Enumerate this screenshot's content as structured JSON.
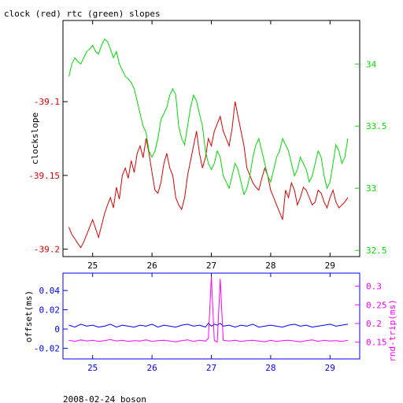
{
  "title": "clock (red) rtc (green) slopes",
  "footer": "2008-02-24 boson",
  "colors": {
    "clock": "#dd0000",
    "rtc": "#00dd00",
    "offset": "#0000ff",
    "rndtrip": "#ff00ff",
    "upper_axis": "#000000",
    "lower_axis": "#0000ff"
  },
  "chart_data": [
    {
      "type": "line",
      "title": "clock (red) rtc (green) slopes",
      "xlabel": "",
      "xlim": [
        24.5,
        29.5
      ],
      "x_ticks": [
        25,
        26,
        27,
        28,
        29
      ],
      "ylabel": "clockslope",
      "ylim": [
        -39.205,
        -39.045
      ],
      "y_ticks": [
        -39.1,
        -39.15,
        -39.2
      ],
      "y2label": "",
      "y2lim": [
        32.45,
        34.35
      ],
      "y2_ticks": [
        34,
        33.5,
        33,
        32.5
      ],
      "grid": false,
      "series": [
        {
          "key": "clock",
          "axis": "left",
          "x": [
            24.6,
            24.65,
            24.7,
            24.75,
            24.8,
            24.85,
            24.9,
            24.95,
            25.0,
            25.05,
            25.1,
            25.15,
            25.2,
            25.25,
            25.3,
            25.35,
            25.4,
            25.45,
            25.5,
            25.55,
            25.6,
            25.65,
            25.7,
            25.75,
            25.8,
            25.85,
            25.9,
            25.95,
            26.0,
            26.05,
            26.1,
            26.15,
            26.2,
            26.25,
            26.3,
            26.35,
            26.4,
            26.45,
            26.5,
            26.55,
            26.6,
            26.65,
            26.7,
            26.75,
            26.8,
            26.85,
            26.9,
            26.95,
            27.0,
            27.05,
            27.1,
            27.15,
            27.2,
            27.25,
            27.3,
            27.35,
            27.4,
            27.45,
            27.5,
            27.55,
            27.6,
            27.65,
            27.7,
            27.75,
            27.8,
            27.85,
            27.9,
            27.95,
            28.0,
            28.05,
            28.1,
            28.15,
            28.2,
            28.25,
            28.3,
            28.35,
            28.4,
            28.45,
            28.5,
            28.55,
            28.6,
            28.65,
            28.7,
            28.75,
            28.8,
            28.85,
            28.9,
            28.95,
            29.0,
            29.05,
            29.1,
            29.15,
            29.2,
            29.25,
            29.3
          ],
          "y": [
            -39.185,
            -39.19,
            -39.193,
            -39.196,
            -39.199,
            -39.195,
            -39.19,
            -39.185,
            -39.18,
            -39.186,
            -39.192,
            -39.184,
            -39.176,
            -39.17,
            -39.165,
            -39.172,
            -39.158,
            -39.166,
            -39.15,
            -39.145,
            -39.152,
            -39.14,
            -39.148,
            -39.135,
            -39.13,
            -39.138,
            -39.125,
            -39.135,
            -39.148,
            -39.16,
            -39.162,
            -39.155,
            -39.142,
            -39.135,
            -39.145,
            -39.15,
            -39.165,
            -39.17,
            -39.173,
            -39.165,
            -39.15,
            -39.14,
            -39.13,
            -39.12,
            -39.135,
            -39.145,
            -39.138,
            -39.125,
            -39.13,
            -39.12,
            -39.115,
            -39.11,
            -39.12,
            -39.125,
            -39.13,
            -39.118,
            -39.1,
            -39.11,
            -39.12,
            -39.13,
            -39.145,
            -39.15,
            -39.155,
            -39.158,
            -39.16,
            -39.152,
            -39.145,
            -39.15,
            -39.16,
            -39.165,
            -39.17,
            -39.175,
            -39.18,
            -39.16,
            -39.165,
            -39.155,
            -39.16,
            -39.17,
            -39.165,
            -39.158,
            -39.16,
            -39.165,
            -39.17,
            -39.168,
            -39.16,
            -39.162,
            -39.168,
            -39.172,
            -39.165,
            -39.16,
            -39.168,
            -39.172,
            -39.17,
            -39.168,
            -39.165
          ]
        },
        {
          "key": "rtc",
          "axis": "right",
          "x": [
            24.6,
            24.65,
            24.7,
            24.75,
            24.8,
            24.85,
            24.9,
            24.95,
            25.0,
            25.05,
            25.1,
            25.15,
            25.2,
            25.25,
            25.3,
            25.35,
            25.4,
            25.45,
            25.5,
            25.55,
            25.6,
            25.65,
            25.7,
            25.75,
            25.8,
            25.85,
            25.9,
            25.95,
            26.0,
            26.05,
            26.1,
            26.15,
            26.2,
            26.25,
            26.3,
            26.35,
            26.4,
            26.45,
            26.5,
            26.55,
            26.6,
            26.65,
            26.7,
            26.75,
            26.8,
            26.85,
            26.9,
            26.95,
            27.0,
            27.05,
            27.1,
            27.15,
            27.2,
            27.25,
            27.3,
            27.35,
            27.4,
            27.45,
            27.5,
            27.55,
            27.6,
            27.65,
            27.7,
            27.75,
            27.8,
            27.85,
            27.9,
            27.95,
            28.0,
            28.05,
            28.1,
            28.15,
            28.2,
            28.25,
            28.3,
            28.35,
            28.4,
            28.45,
            28.5,
            28.55,
            28.6,
            28.65,
            28.7,
            28.75,
            28.8,
            28.85,
            28.9,
            28.95,
            29.0,
            29.05,
            29.1,
            29.15,
            29.2,
            29.25,
            29.3
          ],
          "y": [
            33.9,
            34.0,
            34.05,
            34.02,
            34.0,
            34.05,
            34.1,
            34.12,
            34.15,
            34.1,
            34.08,
            34.15,
            34.2,
            34.18,
            34.12,
            34.05,
            34.1,
            34.0,
            33.95,
            33.9,
            33.88,
            33.85,
            33.8,
            33.7,
            33.6,
            33.5,
            33.45,
            33.3,
            33.25,
            33.3,
            33.4,
            33.55,
            33.6,
            33.65,
            33.75,
            33.8,
            33.75,
            33.5,
            33.4,
            33.35,
            33.5,
            33.65,
            33.75,
            33.7,
            33.6,
            33.5,
            33.3,
            33.2,
            33.15,
            33.2,
            33.3,
            33.25,
            33.1,
            33.05,
            33.0,
            33.1,
            33.2,
            33.15,
            33.05,
            32.95,
            33.0,
            33.1,
            33.25,
            33.35,
            33.4,
            33.3,
            33.2,
            33.1,
            33.05,
            33.15,
            33.25,
            33.3,
            33.4,
            33.35,
            33.3,
            33.2,
            33.1,
            33.15,
            33.25,
            33.2,
            33.15,
            33.05,
            33.1,
            33.2,
            33.3,
            33.25,
            33.1,
            33.0,
            33.05,
            33.2,
            33.35,
            33.3,
            33.2,
            33.25,
            33.4
          ]
        }
      ]
    },
    {
      "type": "line",
      "title": "",
      "xlabel": "",
      "xlim": [
        24.5,
        29.5
      ],
      "x_ticks": [
        25,
        26,
        27,
        28,
        29
      ],
      "ylabel": "offset(ms)",
      "ylim": [
        -0.031,
        0.058
      ],
      "y_ticks": [
        0.04,
        0.02,
        0,
        -0.02
      ],
      "y2label": "rnd-trip(ms)",
      "y2lim": [
        0.105,
        0.335
      ],
      "y2_ticks": [
        0.3,
        0.25,
        0.2,
        0.15
      ],
      "grid": false,
      "series": [
        {
          "key": "offset",
          "axis": "left",
          "x": [
            24.6,
            24.7,
            24.8,
            24.9,
            25.0,
            25.1,
            25.2,
            25.3,
            25.4,
            25.5,
            25.6,
            25.7,
            25.8,
            25.9,
            26.0,
            26.1,
            26.2,
            26.3,
            26.4,
            26.5,
            26.6,
            26.7,
            26.8,
            26.9,
            26.95,
            27.0,
            27.05,
            27.1,
            27.15,
            27.2,
            27.3,
            27.4,
            27.5,
            27.6,
            27.7,
            27.8,
            27.9,
            28.0,
            28.1,
            28.2,
            28.3,
            28.4,
            28.5,
            28.6,
            28.7,
            28.8,
            28.9,
            29.0,
            29.1,
            29.2,
            29.3
          ],
          "y": [
            0.004,
            0.002,
            0.005,
            0.003,
            0.004,
            0.002,
            0.003,
            0.005,
            0.002,
            0.004,
            0.003,
            0.002,
            0.004,
            0.003,
            0.005,
            0.002,
            0.004,
            0.003,
            0.002,
            0.004,
            0.005,
            0.003,
            0.004,
            0.002,
            0.006,
            0.003,
            0.005,
            0.004,
            0.006,
            0.003,
            0.004,
            0.002,
            0.004,
            0.003,
            0.005,
            0.002,
            0.003,
            0.004,
            0.003,
            0.002,
            0.004,
            0.005,
            0.003,
            0.004,
            0.002,
            0.003,
            0.004,
            0.005,
            0.003,
            0.004,
            0.005
          ]
        },
        {
          "key": "rndtrip",
          "axis": "right",
          "x": [
            24.6,
            24.7,
            24.8,
            24.9,
            25.0,
            25.1,
            25.2,
            25.3,
            25.4,
            25.5,
            25.6,
            25.7,
            25.8,
            25.9,
            26.0,
            26.1,
            26.2,
            26.3,
            26.4,
            26.5,
            26.6,
            26.7,
            26.8,
            26.9,
            26.95,
            27.0,
            27.05,
            27.1,
            27.15,
            27.2,
            27.3,
            27.4,
            27.5,
            27.6,
            27.7,
            27.8,
            27.9,
            28.0,
            28.1,
            28.2,
            28.3,
            28.4,
            28.5,
            28.6,
            28.7,
            28.8,
            28.9,
            29.0,
            29.1,
            29.2,
            29.3
          ],
          "y": [
            0.155,
            0.152,
            0.156,
            0.153,
            0.155,
            0.152,
            0.154,
            0.157,
            0.153,
            0.155,
            0.152,
            0.154,
            0.153,
            0.156,
            0.152,
            0.154,
            0.155,
            0.153,
            0.151,
            0.154,
            0.156,
            0.152,
            0.155,
            0.153,
            0.16,
            0.325,
            0.155,
            0.15,
            0.32,
            0.155,
            0.153,
            0.155,
            0.152,
            0.154,
            0.155,
            0.153,
            0.151,
            0.155,
            0.152,
            0.154,
            0.155,
            0.153,
            0.151,
            0.154,
            0.156,
            0.152,
            0.155,
            0.153,
            0.154,
            0.152,
            0.155
          ]
        }
      ]
    }
  ]
}
